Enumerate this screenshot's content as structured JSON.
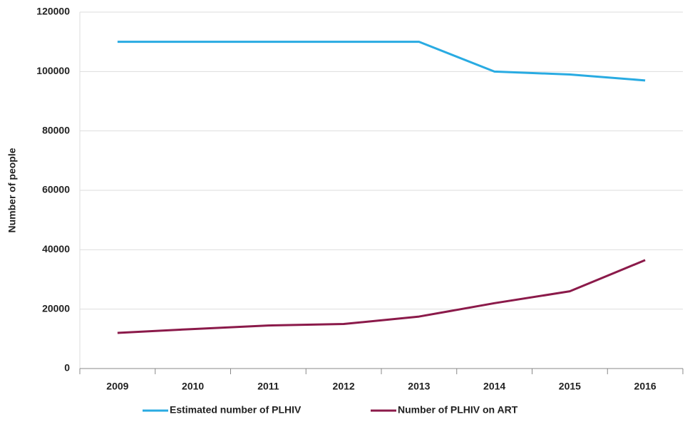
{
  "chart_data": {
    "type": "line",
    "y_label": "Number of people",
    "categories": [
      "2009",
      "2010",
      "2011",
      "2012",
      "2013",
      "2014",
      "2015",
      "2016"
    ],
    "series": [
      {
        "name": "Estimated number of PLHIV",
        "color": "#29abe2",
        "values": [
          110000,
          110000,
          110000,
          110000,
          110000,
          100000,
          99000,
          97000
        ]
      },
      {
        "name": "Number of PLHIV on ART",
        "color": "#8b1a4a",
        "values": [
          12000,
          13300,
          14500,
          15000,
          17500,
          22000,
          26000,
          36500
        ]
      }
    ],
    "ylim": [
      0,
      120000
    ],
    "yticks": [
      0,
      20000,
      40000,
      60000,
      80000,
      100000,
      120000
    ],
    "grid": true,
    "legend": "bottom"
  }
}
